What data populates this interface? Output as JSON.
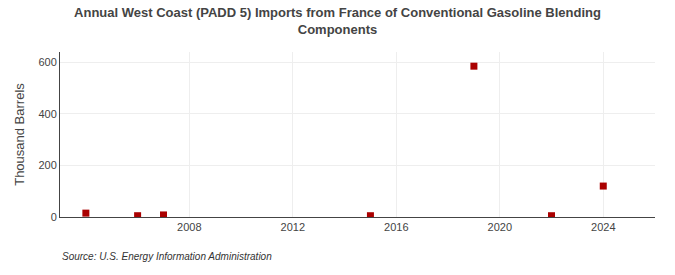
{
  "chart_data": {
    "type": "scatter",
    "title": "Annual West Coast (PADD 5) Imports from France of Conventional Gasoline Blending\nComponents",
    "ylabel": "Thousand Barrels",
    "annotations": [
      "Source: U.S. Energy Information Administration"
    ],
    "x": [
      2004,
      2006,
      2007,
      2015,
      2019,
      2022,
      2024
    ],
    "values": [
      15,
      5,
      8,
      5,
      585,
      5,
      120
    ],
    "color": "#aa0000",
    "marker": "square",
    "xlim": [
      2003,
      2026
    ],
    "ylim": [
      0,
      640
    ],
    "xticks": [
      2008,
      2012,
      2016,
      2020,
      2024
    ],
    "yticks": [
      0,
      200,
      400,
      600
    ],
    "grid": true
  }
}
